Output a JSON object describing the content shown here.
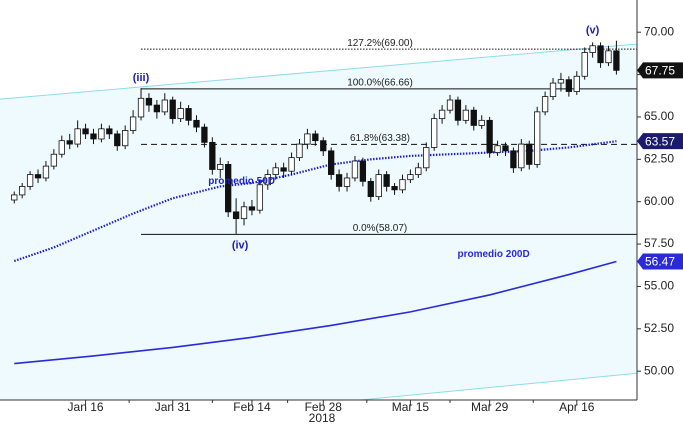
{
  "chart_data": {
    "type": "candlestick",
    "xlabel": "2018",
    "xlim": [
      -1.8,
      78.6
    ],
    "ylim": [
      48.3,
      71.9
    ],
    "xticks": [
      {
        "value": 9,
        "label": "Jan 16"
      },
      {
        "value": 20,
        "label": "Jan 31"
      },
      {
        "value": 30,
        "label": "Feb 14"
      },
      {
        "value": 39,
        "label": "Feb 28"
      },
      {
        "value": 50,
        "label": "Mar 15"
      },
      {
        "value": 60,
        "label": "Mar 29"
      },
      {
        "value": 71,
        "label": "Apr 16"
      }
    ],
    "yticks": [
      {
        "value": 50,
        "label": "50.00"
      },
      {
        "value": 52.5,
        "label": "52.50"
      },
      {
        "value": 55,
        "label": "55.00"
      },
      {
        "value": 57.5,
        "label": "57.50"
      },
      {
        "value": 60,
        "label": "60.00"
      },
      {
        "value": 62.5,
        "label": "62.50"
      },
      {
        "value": 65,
        "label": "65.00"
      },
      {
        "value": 67.5,
        "label": "67.50"
      },
      {
        "value": 70,
        "label": "70.00"
      }
    ],
    "open": [
      60.1,
      60.4,
      60.9,
      61.6,
      61.4,
      62.1,
      62.8,
      63.6,
      63.4,
      64.3,
      64.0,
      63.7,
      64.3,
      64.0,
      63.3,
      64.2,
      65.0,
      66.1,
      65.7,
      65.3,
      66.0,
      64.9,
      65.5,
      64.8,
      64.4,
      63.5,
      61.9,
      62.2,
      59.4,
      59.0,
      59.7,
      59.5,
      61.0,
      61.6,
      62.0,
      61.8,
      62.6,
      63.4,
      64.0,
      63.6,
      63.0,
      61.6,
      60.9,
      61.4,
      62.4,
      61.2,
      60.3,
      61.6,
      60.9,
      60.7,
      61.3,
      61.6,
      62.0,
      63.2,
      64.9,
      65.4,
      66.0,
      64.8,
      65.4,
      64.5,
      64.8,
      62.9,
      63.3,
      63.0,
      62.0,
      63.4,
      62.2,
      65.3,
      66.2,
      67.0,
      67.2,
      66.5,
      67.4,
      68.8,
      69.2,
      68.2,
      68.9
    ],
    "high": [
      60.6,
      61.1,
      61.8,
      61.9,
      62.4,
      63.1,
      63.9,
      64.0,
      64.8,
      64.6,
      64.3,
      64.6,
      64.5,
      64.2,
      64.5,
      65.4,
      66.7,
      66.4,
      66.0,
      66.4,
      66.2,
      65.9,
      65.7,
      65.1,
      64.6,
      63.8,
      62.6,
      62.4,
      60.2,
      60.0,
      60.1,
      61.3,
      61.9,
      62.3,
      62.3,
      62.9,
      63.7,
      64.3,
      64.2,
      63.8,
      63.2,
      61.9,
      61.7,
      62.7,
      62.6,
      61.4,
      61.9,
      61.8,
      61.1,
      61.6,
      61.9,
      62.3,
      63.5,
      65.2,
      65.7,
      66.3,
      66.2,
      65.7,
      65.6,
      65.1,
      65.0,
      63.6,
      63.5,
      63.2,
      63.7,
      63.6,
      65.6,
      66.5,
      67.3,
      67.6,
      67.4,
      67.7,
      69.1,
      69.4,
      69.4,
      69.2,
      69.5
    ],
    "low": [
      59.9,
      60.2,
      60.7,
      61.1,
      61.2,
      61.9,
      62.6,
      63.1,
      63.2,
      63.7,
      63.4,
      63.5,
      63.7,
      63.0,
      63.1,
      64.0,
      64.8,
      65.3,
      64.9,
      65.1,
      64.6,
      64.7,
      64.5,
      64.1,
      63.2,
      61.6,
      61.4,
      59.1,
      58.1,
      58.6,
      59.2,
      59.3,
      60.7,
      61.3,
      61.4,
      61.6,
      62.4,
      63.1,
      63.3,
      62.7,
      61.3,
      60.6,
      60.6,
      61.2,
      60.9,
      60.0,
      60.1,
      60.6,
      60.4,
      60.5,
      61.1,
      61.4,
      61.8,
      63.0,
      64.6,
      65.2,
      64.5,
      64.6,
      64.2,
      64.3,
      62.6,
      62.7,
      62.7,
      61.7,
      61.8,
      61.9,
      62.0,
      65.1,
      66.0,
      66.5,
      66.2,
      66.3,
      67.2,
      68.5,
      67.9,
      68.0,
      67.5
    ],
    "close": [
      60.4,
      60.9,
      61.6,
      61.4,
      62.1,
      62.8,
      63.6,
      63.4,
      64.3,
      64.0,
      63.7,
      64.3,
      64.0,
      63.3,
      64.2,
      65.0,
      66.1,
      65.7,
      65.3,
      66.0,
      64.9,
      65.5,
      64.8,
      64.4,
      63.5,
      61.9,
      62.2,
      59.4,
      59.0,
      59.7,
      59.5,
      61.0,
      61.6,
      62.0,
      61.8,
      62.6,
      63.4,
      64.0,
      63.6,
      63.0,
      61.6,
      60.9,
      61.4,
      62.4,
      61.2,
      60.3,
      61.6,
      60.9,
      60.7,
      61.3,
      61.6,
      62.0,
      63.2,
      64.9,
      65.4,
      66.0,
      64.8,
      65.4,
      64.5,
      64.8,
      62.9,
      63.3,
      63.0,
      62.0,
      63.4,
      62.2,
      65.3,
      66.2,
      67.0,
      67.2,
      66.5,
      67.4,
      68.8,
      69.2,
      68.2,
      68.9,
      67.75
    ],
    "series": [
      {
        "name": "promedio 50D",
        "color": "#1f1fd0",
        "style": "dotted",
        "x": [
          0,
          5,
          10,
          15,
          20,
          26,
          30,
          35,
          40,
          45,
          50,
          55,
          60,
          65,
          70,
          76
        ],
        "values": [
          56.5,
          57.3,
          58.3,
          59.3,
          60.2,
          60.9,
          61.1,
          61.6,
          62.2,
          62.5,
          62.7,
          62.8,
          62.9,
          63.0,
          63.2,
          63.57
        ]
      },
      {
        "name": "promedio 200D",
        "color": "#2a2ad8",
        "style": "solid",
        "x": [
          0,
          10,
          20,
          30,
          40,
          50,
          60,
          70,
          76
        ],
        "values": [
          50.45,
          50.9,
          51.4,
          52.0,
          52.7,
          53.5,
          54.5,
          55.7,
          56.47
        ]
      }
    ],
    "channel": [
      {
        "x": [
          -1.8,
          78.6
        ],
        "values": [
          66.05,
          69.3
        ]
      },
      {
        "x": [
          -1.8,
          78.6
        ],
        "values": [
          46.24,
          49.88
        ]
      }
    ],
    "levels": [
      {
        "label": "127.2%(69.00)",
        "value": 69.0,
        "style": "dotted"
      },
      {
        "label": "100.0%(66.66)",
        "value": 66.66,
        "style": "solid"
      },
      {
        "label": "61.8%(63.38)",
        "value": 63.38,
        "style": "dashed"
      },
      {
        "label": "0.0%(58.07)",
        "value": 58.07,
        "style": "solid"
      }
    ],
    "levels_start": 16,
    "annotations": [
      {
        "text": "(iii)",
        "x": 16,
        "y": 67.3
      },
      {
        "text": "(iv)",
        "x": 28.5,
        "y": 57.4
      },
      {
        "text": "(v)",
        "x": 73,
        "y": 70.1
      }
    ]
  }
}
